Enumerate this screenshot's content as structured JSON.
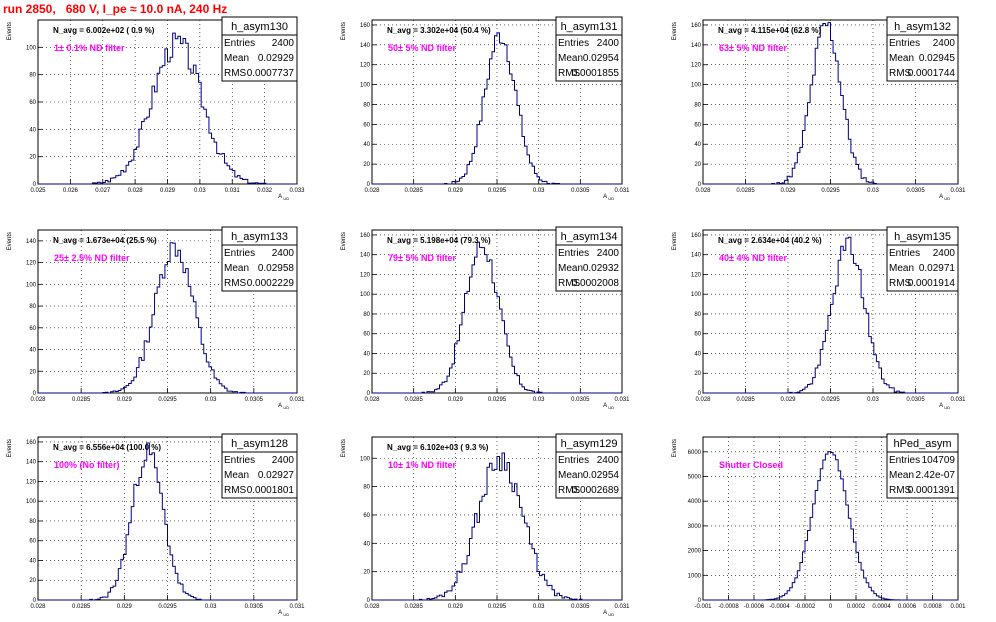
{
  "header": {
    "title": "run 2850,   680 V, I_pe ≈ 10.0 nA, 240 Hz"
  },
  "colors": {
    "hist": "#000080",
    "label": "#ff00ff",
    "title": "#ff0000",
    "frame": "#000000"
  },
  "chart_data": [
    {
      "type": "histogram",
      "name": "h_asym130",
      "navg": "N_avg = 6.002e+02 ( 0.9 %)",
      "filter": "1± 0.1% ND filter",
      "stats": {
        "entries_label": "Entries",
        "entries": "2400",
        "mean_label": "Mean",
        "mean": "0.02929",
        "rms_label": "RMS",
        "rms": "0.0007737"
      },
      "ylabel": "Events",
      "xlabel": "A_UD",
      "xlim": [
        0.025,
        0.033
      ],
      "ylim": [
        0,
        120
      ],
      "xticks": [
        "0.025",
        "0.026",
        "0.027",
        "0.028",
        "0.029",
        "0.03",
        "0.031",
        "0.032",
        "0.033"
      ],
      "xtick_values": [
        0.025,
        0.026,
        0.027,
        0.028,
        0.029,
        0.03,
        0.031,
        0.032,
        0.033
      ],
      "yticks": [
        0,
        20,
        40,
        60,
        80,
        100
      ],
      "mean": 0.02929,
      "rms": 0.0007737,
      "peak": 103,
      "seed": 3
    },
    {
      "type": "histogram",
      "name": "h_asym131",
      "navg": "N_avg = 3.302e+04 (50.4 %)",
      "filter": "50± 5% ND filter",
      "stats": {
        "entries_label": "Entries",
        "entries": "2400",
        "mean_label": "Mean",
        "mean": "0.02954",
        "rms_label": "RMS",
        "rms": "0.0001855"
      },
      "ylabel": "Events",
      "xlabel": "A_UD",
      "xlim": [
        0.028,
        0.031
      ],
      "ylim": [
        0,
        165
      ],
      "xticks": [
        "0.028",
        "0.0285",
        "0.029",
        "0.0295",
        "0.03",
        "0.0305",
        "0.031"
      ],
      "xtick_values": [
        0.028,
        0.0285,
        0.029,
        0.0295,
        0.03,
        0.0305,
        0.031
      ],
      "yticks": [
        0,
        20,
        40,
        60,
        80,
        100,
        120,
        140,
        160
      ],
      "mean": 0.02954,
      "rms": 0.0001855,
      "peak": 150,
      "seed": 7
    },
    {
      "type": "histogram",
      "name": "h_asym132",
      "navg": "N_avg = 4.115e+04 (62.8 %)",
      "filter": "63± 5% ND filter",
      "stats": {
        "entries_label": "Entries",
        "entries": "2400",
        "mean_label": "Mean",
        "mean": "0.02945",
        "rms_label": "RMS",
        "rms": "0.0001744"
      },
      "ylabel": "Events",
      "xlabel": "A_UD",
      "xlim": [
        0.028,
        0.031
      ],
      "ylim": [
        0,
        165
      ],
      "xticks": [
        "0.028",
        "0.0285",
        "0.029",
        "0.0295",
        "0.03",
        "0.0305",
        "0.031"
      ],
      "xtick_values": [
        0.028,
        0.0285,
        0.029,
        0.0295,
        0.03,
        0.0305,
        0.031
      ],
      "yticks": [
        0,
        20,
        40,
        60,
        80,
        100,
        120,
        140,
        160
      ],
      "mean": 0.02945,
      "rms": 0.0001744,
      "peak": 160,
      "seed": 11
    },
    {
      "type": "histogram",
      "name": "h_asym133",
      "navg": "N_avg = 1.673e+04 (25.5 %)",
      "filter": "25± 2.5% ND filter",
      "stats": {
        "entries_label": "Entries",
        "entries": "2400",
        "mean_label": "Mean",
        "mean": "0.02958",
        "rms_label": "RMS",
        "rms": "0.0002229"
      },
      "ylabel": "Events",
      "xlabel": "A_UD",
      "xlim": [
        0.028,
        0.031
      ],
      "ylim": [
        0,
        150
      ],
      "xticks": [
        "0.028",
        "0.0285",
        "0.029",
        "0.0295",
        "0.03",
        "0.0305",
        "0.031"
      ],
      "xtick_values": [
        0.028,
        0.0285,
        0.029,
        0.0295,
        0.03,
        0.0305,
        0.031
      ],
      "yticks": [
        0,
        20,
        40,
        60,
        80,
        100,
        120,
        140
      ],
      "mean": 0.02958,
      "rms": 0.0002229,
      "peak": 135,
      "seed": 13
    },
    {
      "type": "histogram",
      "name": "h_asym134",
      "navg": "N_avg = 5.198e+04 (79.3 %)",
      "filter": "79± 5% ND filter",
      "stats": {
        "entries_label": "Entries",
        "entries": "2400",
        "mean_label": "Mean",
        "mean": "0.02932",
        "rms_label": "RMS",
        "rms": "0.0002008"
      },
      "ylabel": "Events",
      "xlabel": "A_UD",
      "xlim": [
        0.028,
        0.031
      ],
      "ylim": [
        0,
        165
      ],
      "xticks": [
        "0.028",
        "0.0285",
        "0.029",
        "0.0295",
        "0.03",
        "0.0305",
        "0.031"
      ],
      "xtick_values": [
        0.028,
        0.0285,
        0.029,
        0.0295,
        0.03,
        0.0305,
        0.031
      ],
      "yticks": [
        0,
        20,
        40,
        60,
        80,
        100,
        120,
        140,
        160
      ],
      "mean": 0.02932,
      "rms": 0.0002008,
      "peak": 150,
      "seed": 17
    },
    {
      "type": "histogram",
      "name": "h_asym135",
      "navg": "N_avg = 2.634e+04 (40.2 %)",
      "filter": "40± 4% ND filter",
      "stats": {
        "entries_label": "Entries",
        "entries": "2400",
        "mean_label": "Mean",
        "mean": "0.02971",
        "rms_label": "RMS",
        "rms": "0.0001914"
      },
      "ylabel": "Events",
      "xlabel": "A_UD",
      "xlim": [
        0.028,
        0.031
      ],
      "ylim": [
        0,
        165
      ],
      "xticks": [
        "0.028",
        "0.0285",
        "0.029",
        "0.0295",
        "0.03",
        "0.0305",
        "0.031"
      ],
      "xtick_values": [
        0.028,
        0.0285,
        0.029,
        0.0295,
        0.03,
        0.0305,
        0.031
      ],
      "yticks": [
        0,
        20,
        40,
        60,
        80,
        100,
        120,
        140,
        160
      ],
      "mean": 0.02971,
      "rms": 0.0001914,
      "peak": 150,
      "seed": 19
    },
    {
      "type": "histogram",
      "name": "h_asym128",
      "navg": "N_avg = 6.556e+04 (100.0 %)",
      "filter": "100% (No filter)",
      "stats": {
        "entries_label": "Entries",
        "entries": "2400",
        "mean_label": "Mean",
        "mean": "0.02927",
        "rms_label": "RMS",
        "rms": "0.0001801"
      },
      "ylabel": "Events",
      "xlabel": "A_UD",
      "xlim": [
        0.028,
        0.031
      ],
      "ylim": [
        0,
        165
      ],
      "xticks": [
        "0.028",
        "0.0285",
        "0.029",
        "0.0295",
        "0.03",
        "0.0305",
        "0.031"
      ],
      "xtick_values": [
        0.028,
        0.0285,
        0.029,
        0.0295,
        0.03,
        0.0305,
        0.031
      ],
      "yticks": [
        0,
        20,
        40,
        60,
        80,
        100,
        120,
        140,
        160
      ],
      "mean": 0.02927,
      "rms": 0.0001801,
      "peak": 150,
      "seed": 23
    },
    {
      "type": "histogram",
      "name": "h_asym129",
      "navg": "N_avg = 6.102e+03 ( 9.3 %)",
      "filter": "10± 1% ND filter",
      "stats": {
        "entries_label": "Entries",
        "entries": "2400",
        "mean_label": "Mean",
        "mean": "0.02954",
        "rms_label": "RMS",
        "rms": "0.0002689"
      },
      "ylabel": "Events",
      "xlabel": "A_UD",
      "xlim": [
        0.028,
        0.031
      ],
      "ylim": [
        0,
        115
      ],
      "xticks": [
        "0.028",
        "0.0285",
        "0.029",
        "0.0295",
        "0.03",
        "0.0305",
        "0.031"
      ],
      "xtick_values": [
        0.028,
        0.0285,
        0.029,
        0.0295,
        0.03,
        0.0305,
        0.031
      ],
      "yticks": [
        0,
        20,
        40,
        60,
        80,
        100
      ],
      "mean": 0.02954,
      "rms": 0.0002689,
      "peak": 100,
      "seed": 29
    },
    {
      "type": "histogram",
      "name": "hPed_asym",
      "navg": "",
      "filter": "Shutter Closed",
      "stats": {
        "entries_label": "Entries",
        "entries": "104709",
        "mean_label": "Mean",
        "mean": "2.42e-07",
        "rms_label": "RMS",
        "rms": "0.0001391"
      },
      "ylabel": "Events",
      "xlabel": "",
      "xlim": [
        -0.001,
        0.001
      ],
      "ylim": [
        0,
        6600
      ],
      "xticks": [
        "-0.001",
        "-0.0008",
        "-0.0006",
        "-0.0004",
        "-0.0002",
        "0",
        "0.0002",
        "0.0004",
        "0.0006",
        "0.0008",
        "0.001"
      ],
      "xtick_values": [
        -0.001,
        -0.0008,
        -0.0006,
        -0.0004,
        -0.0002,
        0,
        0.0002,
        0.0004,
        0.0006,
        0.0008,
        0.001
      ],
      "yticks": [
        0,
        1000,
        2000,
        3000,
        4000,
        5000,
        6000
      ],
      "mean": 0.0,
      "rms": 0.0001391,
      "peak": 6000,
      "seed": 31
    }
  ]
}
